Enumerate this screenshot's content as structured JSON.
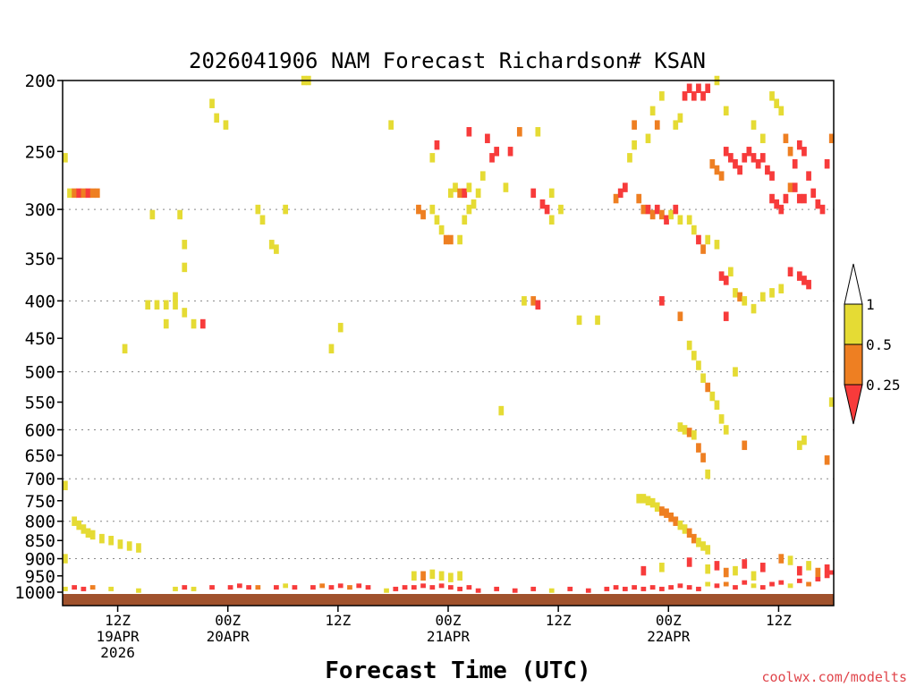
{
  "chart_data": {
    "type": "heatmap",
    "title": "2026041906 NAM Forecast Richardson# KSAN",
    "xlabel": "Forecast Time (UTC)",
    "ylabel": "",
    "watermark": "coolwx.com/modelts",
    "x_unit": "forecast hours from 2026-04-19 06Z",
    "xlim": [
      0,
      84
    ],
    "y_unit": "hPa (log pressure axis)",
    "ylim": [
      1000,
      200
    ],
    "y_ticks": [
      200,
      250,
      300,
      350,
      400,
      450,
      500,
      550,
      600,
      650,
      700,
      750,
      800,
      850,
      900,
      950,
      1000
    ],
    "y_gridlines": [
      300,
      400,
      500,
      600,
      700,
      800,
      900
    ],
    "x_ticks": [
      {
        "hour": 6,
        "line1": "12Z",
        "line2": "19APR",
        "line3": "2026"
      },
      {
        "hour": 18,
        "line1": "00Z",
        "line2": "20APR",
        "line3": ""
      },
      {
        "hour": 30,
        "line1": "12Z",
        "line2": "",
        "line3": ""
      },
      {
        "hour": 42,
        "line1": "00Z",
        "line2": "21APR",
        "line3": ""
      },
      {
        "hour": 54,
        "line1": "12Z",
        "line2": "",
        "line3": ""
      },
      {
        "hour": 66,
        "line1": "00Z",
        "line2": "22APR",
        "line3": ""
      },
      {
        "hour": 78,
        "line1": "12Z",
        "line2": "",
        "line3": ""
      }
    ],
    "legend": {
      "placement": "right",
      "levels": [
        "1",
        "0.5",
        "0.25"
      ],
      "bins": [
        {
          "range": "0.5-1",
          "color": "#e5db34"
        },
        {
          "range": "0.25-0.5",
          "color": "#ee7f22"
        },
        {
          "range": "<0.25",
          "color": "#f73b3b"
        }
      ],
      "above_color": "#ffffff",
      "below_color": "#f73b3b"
    },
    "ground": {
      "pressure": 1000,
      "color": "#a0522d"
    },
    "categories": {
      "1": "#e5db34",
      "2": "#ee7f22",
      "3": "#f73b3b"
    },
    "cells": [
      [
        0,
        255,
        1
      ],
      [
        0.5,
        285,
        1
      ],
      [
        1,
        285,
        2
      ],
      [
        1.5,
        285,
        3
      ],
      [
        2,
        285,
        2
      ],
      [
        2.5,
        285,
        3
      ],
      [
        3,
        285,
        2
      ],
      [
        3.5,
        285,
        2
      ],
      [
        9.5,
        305,
        1
      ],
      [
        12.5,
        305,
        1
      ],
      [
        13,
        360,
        1
      ],
      [
        12,
        395,
        1
      ],
      [
        9,
        405,
        1
      ],
      [
        10,
        405,
        1
      ],
      [
        11,
        405,
        1
      ],
      [
        12,
        405,
        1
      ],
      [
        13,
        415,
        1
      ],
      [
        11,
        430,
        1
      ],
      [
        14,
        430,
        1
      ],
      [
        15,
        430,
        3
      ],
      [
        6.5,
        465,
        1
      ],
      [
        16,
        215,
        1
      ],
      [
        16.5,
        225,
        1
      ],
      [
        17.5,
        230,
        1
      ],
      [
        21,
        300,
        1
      ],
      [
        21.5,
        310,
        1
      ],
      [
        24,
        300,
        1
      ],
      [
        22.5,
        335,
        1
      ],
      [
        23,
        340,
        1
      ],
      [
        13,
        335,
        1
      ],
      [
        26,
        200,
        1
      ],
      [
        26.5,
        200,
        1
      ],
      [
        30,
        435,
        1
      ],
      [
        29,
        465,
        1
      ],
      [
        35.5,
        230,
        1
      ],
      [
        38.5,
        300,
        2
      ],
      [
        39,
        305,
        2
      ],
      [
        40,
        300,
        1
      ],
      [
        40.5,
        310,
        1
      ],
      [
        41,
        320,
        1
      ],
      [
        41.5,
        330,
        2
      ],
      [
        42,
        330,
        2
      ],
      [
        43,
        330,
        1
      ],
      [
        43.5,
        310,
        1
      ],
      [
        44,
        300,
        1
      ],
      [
        40,
        255,
        1
      ],
      [
        40.5,
        245,
        3
      ],
      [
        42,
        285,
        1
      ],
      [
        42.5,
        280,
        1
      ],
      [
        43,
        285,
        2
      ],
      [
        43.5,
        285,
        3
      ],
      [
        44,
        280,
        1
      ],
      [
        44.5,
        295,
        1
      ],
      [
        45,
        285,
        1
      ],
      [
        45.5,
        270,
        1
      ],
      [
        44,
        235,
        3
      ],
      [
        46,
        240,
        3
      ],
      [
        46.5,
        255,
        3
      ],
      [
        47,
        250,
        3
      ],
      [
        48,
        280,
        1
      ],
      [
        48.5,
        250,
        3
      ],
      [
        49.5,
        235,
        2
      ],
      [
        51,
        285,
        3
      ],
      [
        52,
        295,
        3
      ],
      [
        52.5,
        300,
        3
      ],
      [
        53,
        310,
        1
      ],
      [
        51.5,
        235,
        1
      ],
      [
        53,
        285,
        1
      ],
      [
        54,
        300,
        1
      ],
      [
        50,
        400,
        1
      ],
      [
        51,
        400,
        2
      ],
      [
        51.5,
        405,
        3
      ],
      [
        56,
        425,
        1
      ],
      [
        58,
        425,
        1
      ],
      [
        47.5,
        565,
        1
      ],
      [
        60,
        290,
        2
      ],
      [
        60.5,
        285,
        3
      ],
      [
        61,
        280,
        3
      ],
      [
        61.5,
        255,
        1
      ],
      [
        62,
        245,
        1
      ],
      [
        62.5,
        290,
        2
      ],
      [
        63,
        300,
        2
      ],
      [
        63.5,
        300,
        3
      ],
      [
        64,
        305,
        2
      ],
      [
        64.5,
        300,
        3
      ],
      [
        65,
        305,
        2
      ],
      [
        65.5,
        310,
        3
      ],
      [
        66,
        305,
        1
      ],
      [
        66.5,
        300,
        3
      ],
      [
        62,
        230,
        2
      ],
      [
        63.5,
        240,
        1
      ],
      [
        64,
        220,
        1
      ],
      [
        64.5,
        230,
        2
      ],
      [
        65,
        210,
        1
      ],
      [
        66.5,
        230,
        1
      ],
      [
        67,
        225,
        1
      ],
      [
        67.5,
        210,
        3
      ],
      [
        68,
        205,
        3
      ],
      [
        68.5,
        210,
        3
      ],
      [
        69,
        205,
        3
      ],
      [
        69.5,
        210,
        3
      ],
      [
        70,
        205,
        3
      ],
      [
        71,
        200,
        1
      ],
      [
        72,
        220,
        1
      ],
      [
        70.5,
        260,
        2
      ],
      [
        71,
        265,
        2
      ],
      [
        71.5,
        270,
        2
      ],
      [
        72,
        250,
        3
      ],
      [
        72.5,
        255,
        3
      ],
      [
        73,
        260,
        3
      ],
      [
        73.5,
        265,
        3
      ],
      [
        74,
        255,
        3
      ],
      [
        74.5,
        250,
        3
      ],
      [
        75,
        255,
        3
      ],
      [
        75.5,
        260,
        3
      ],
      [
        76,
        255,
        3
      ],
      [
        76.5,
        265,
        3
      ],
      [
        77,
        270,
        3
      ],
      [
        75,
        230,
        1
      ],
      [
        76,
        240,
        1
      ],
      [
        77,
        210,
        1
      ],
      [
        77.5,
        215,
        1
      ],
      [
        78,
        220,
        1
      ],
      [
        78.5,
        240,
        2
      ],
      [
        79,
        250,
        2
      ],
      [
        79.5,
        260,
        3
      ],
      [
        80,
        245,
        3
      ],
      [
        80.5,
        250,
        3
      ],
      [
        81,
        270,
        3
      ],
      [
        81.5,
        285,
        3
      ],
      [
        82,
        295,
        3
      ],
      [
        82.5,
        300,
        3
      ],
      [
        83,
        260,
        3
      ],
      [
        83.5,
        240,
        2
      ],
      [
        77,
        290,
        3
      ],
      [
        77.5,
        295,
        3
      ],
      [
        78,
        300,
        3
      ],
      [
        78.5,
        290,
        3
      ],
      [
        79,
        280,
        2
      ],
      [
        79.5,
        280,
        3
      ],
      [
        80,
        290,
        3
      ],
      [
        80.5,
        290,
        3
      ],
      [
        67,
        310,
        1
      ],
      [
        68,
        310,
        1
      ],
      [
        68.5,
        320,
        1
      ],
      [
        69,
        330,
        3
      ],
      [
        69.5,
        340,
        2
      ],
      [
        70,
        330,
        1
      ],
      [
        71,
        335,
        1
      ],
      [
        71.5,
        370,
        3
      ],
      [
        72,
        375,
        3
      ],
      [
        72.5,
        365,
        1
      ],
      [
        73,
        390,
        1
      ],
      [
        73.5,
        395,
        2
      ],
      [
        74,
        400,
        1
      ],
      [
        75,
        410,
        1
      ],
      [
        76,
        395,
        1
      ],
      [
        77,
        390,
        1
      ],
      [
        78,
        385,
        1
      ],
      [
        79,
        365,
        3
      ],
      [
        80,
        370,
        3
      ],
      [
        80.5,
        375,
        3
      ],
      [
        81,
        380,
        3
      ],
      [
        65,
        400,
        3
      ],
      [
        67,
        420,
        2
      ],
      [
        72,
        420,
        3
      ],
      [
        68,
        460,
        1
      ],
      [
        68.5,
        475,
        1
      ],
      [
        69,
        490,
        1
      ],
      [
        69.5,
        510,
        1
      ],
      [
        70,
        525,
        2
      ],
      [
        70.5,
        540,
        1
      ],
      [
        71,
        555,
        1
      ],
      [
        71.5,
        580,
        1
      ],
      [
        72,
        600,
        1
      ],
      [
        73,
        500,
        1
      ],
      [
        74,
        630,
        2
      ],
      [
        67,
        595,
        1
      ],
      [
        67.5,
        600,
        1
      ],
      [
        68,
        605,
        2
      ],
      [
        68.5,
        610,
        1
      ],
      [
        69,
        635,
        2
      ],
      [
        69.5,
        655,
        2
      ],
      [
        70,
        690,
        1
      ],
      [
        80,
        630,
        1
      ],
      [
        80.5,
        620,
        1
      ],
      [
        83.5,
        550,
        1
      ],
      [
        83,
        660,
        2
      ],
      [
        62.5,
        745,
        1
      ],
      [
        63,
        745,
        1
      ],
      [
        63.5,
        750,
        1
      ],
      [
        64,
        755,
        1
      ],
      [
        64.5,
        765,
        1
      ],
      [
        65,
        775,
        2
      ],
      [
        65.5,
        780,
        2
      ],
      [
        66,
        790,
        2
      ],
      [
        66.5,
        800,
        2
      ],
      [
        67,
        810,
        1
      ],
      [
        67.5,
        820,
        1
      ],
      [
        68,
        830,
        2
      ],
      [
        68.5,
        845,
        2
      ],
      [
        69,
        855,
        1
      ],
      [
        69.5,
        865,
        1
      ],
      [
        70,
        875,
        1
      ],
      [
        0,
        715,
        1
      ],
      [
        1,
        800,
        1
      ],
      [
        1.5,
        810,
        1
      ],
      [
        2,
        820,
        1
      ],
      [
        2.5,
        830,
        1
      ],
      [
        3,
        835,
        1
      ],
      [
        4,
        845,
        1
      ],
      [
        5,
        850,
        1
      ],
      [
        6,
        860,
        1
      ],
      [
        7,
        865,
        1
      ],
      [
        8,
        870,
        1
      ],
      [
        0,
        900,
        1
      ],
      [
        38,
        950,
        1
      ],
      [
        39,
        950,
        2
      ],
      [
        40,
        945,
        1
      ],
      [
        41,
        950,
        1
      ],
      [
        42,
        955,
        1
      ],
      [
        43,
        950,
        1
      ],
      [
        63,
        935,
        3
      ],
      [
        65,
        925,
        1
      ],
      [
        68,
        910,
        3
      ],
      [
        70,
        930,
        1
      ],
      [
        71,
        920,
        3
      ],
      [
        72,
        940,
        2
      ],
      [
        73,
        935,
        1
      ],
      [
        74,
        915,
        3
      ],
      [
        75,
        950,
        1
      ],
      [
        76,
        925,
        3
      ],
      [
        78,
        900,
        2
      ],
      [
        79,
        905,
        1
      ],
      [
        80,
        935,
        3
      ],
      [
        81,
        920,
        1
      ],
      [
        82,
        940,
        2
      ],
      [
        83,
        930,
        3
      ]
    ],
    "surface_cells": [
      [
        0,
        990,
        1
      ],
      [
        1,
        985,
        3
      ],
      [
        2,
        990,
        3
      ],
      [
        3,
        985,
        2
      ],
      [
        5,
        990,
        1
      ],
      [
        8,
        995,
        1
      ],
      [
        12,
        990,
        1
      ],
      [
        13,
        985,
        3
      ],
      [
        14,
        990,
        1
      ],
      [
        16,
        985,
        3
      ],
      [
        18,
        985,
        3
      ],
      [
        19,
        980,
        3
      ],
      [
        20,
        985,
        3
      ],
      [
        21,
        985,
        2
      ],
      [
        23,
        985,
        3
      ],
      [
        24,
        980,
        1
      ],
      [
        25,
        985,
        3
      ],
      [
        27,
        985,
        3
      ],
      [
        28,
        980,
        2
      ],
      [
        29,
        985,
        3
      ],
      [
        30,
        980,
        3
      ],
      [
        31,
        985,
        2
      ],
      [
        32,
        980,
        3
      ],
      [
        33,
        985,
        3
      ],
      [
        35,
        995,
        1
      ],
      [
        36,
        990,
        3
      ],
      [
        37,
        985,
        3
      ],
      [
        38,
        985,
        3
      ],
      [
        39,
        980,
        3
      ],
      [
        40,
        985,
        3
      ],
      [
        41,
        980,
        3
      ],
      [
        42,
        985,
        3
      ],
      [
        43,
        990,
        3
      ],
      [
        44,
        985,
        3
      ],
      [
        45,
        995,
        3
      ],
      [
        47,
        990,
        3
      ],
      [
        49,
        995,
        3
      ],
      [
        51,
        990,
        3
      ],
      [
        53,
        995,
        1
      ],
      [
        55,
        990,
        3
      ],
      [
        57,
        995,
        3
      ],
      [
        59,
        990,
        3
      ],
      [
        60,
        985,
        3
      ],
      [
        61,
        990,
        3
      ],
      [
        62,
        985,
        3
      ],
      [
        63,
        990,
        3
      ],
      [
        64,
        985,
        3
      ],
      [
        65,
        990,
        3
      ],
      [
        66,
        985,
        3
      ],
      [
        67,
        980,
        3
      ],
      [
        68,
        985,
        3
      ],
      [
        69,
        990,
        3
      ],
      [
        70,
        975,
        1
      ],
      [
        71,
        980,
        3
      ],
      [
        72,
        975,
        2
      ],
      [
        73,
        985,
        3
      ],
      [
        74,
        970,
        3
      ],
      [
        75,
        980,
        1
      ],
      [
        76,
        985,
        3
      ],
      [
        77,
        975,
        3
      ],
      [
        78,
        970,
        3
      ],
      [
        79,
        980,
        1
      ],
      [
        80,
        965,
        3
      ],
      [
        81,
        975,
        2
      ],
      [
        82,
        960,
        3
      ],
      [
        83,
        950,
        3
      ],
      [
        83.5,
        940,
        3
      ]
    ]
  }
}
